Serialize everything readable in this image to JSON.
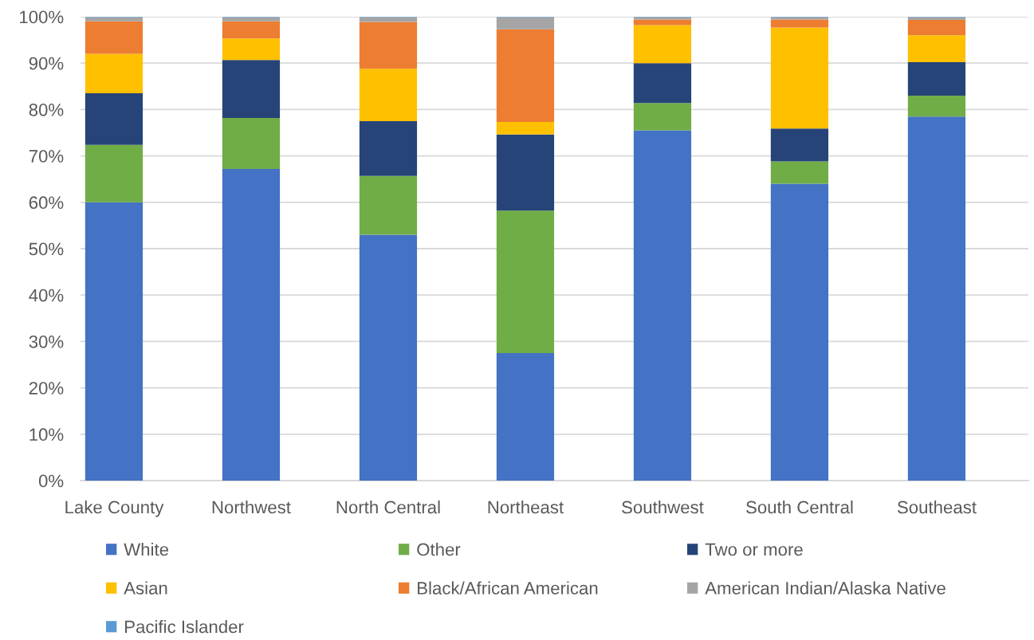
{
  "chart_data": {
    "type": "bar",
    "stacked": true,
    "categories": [
      "Lake County",
      "Northwest",
      "North Central",
      "Northeast",
      "Southwest",
      "South Central",
      "Southeast"
    ],
    "series": [
      {
        "name": "White",
        "color": "#4472c4",
        "values": [
          60.0,
          67.2,
          53.0,
          27.5,
          75.5,
          64.0,
          78.5
        ]
      },
      {
        "name": "Other",
        "color": "#70ad47",
        "values": [
          12.4,
          11.0,
          12.7,
          30.7,
          5.9,
          4.8,
          4.5
        ]
      },
      {
        "name": "Two or more",
        "color": "#264478",
        "values": [
          11.1,
          12.5,
          11.8,
          16.4,
          8.6,
          7.1,
          7.2
        ]
      },
      {
        "name": "Asian",
        "color": "#ffc000",
        "values": [
          8.5,
          4.6,
          11.3,
          2.7,
          8.2,
          21.8,
          5.8
        ]
      },
      {
        "name": "Black/African American",
        "color": "#ed7d31",
        "values": [
          7.0,
          3.7,
          10.1,
          20.0,
          1.2,
          1.7,
          3.3
        ]
      },
      {
        "name": "American Indian/Alaska Native",
        "color": "#a5a5a5",
        "values": [
          0.9,
          0.9,
          1.0,
          2.6,
          0.5,
          0.5,
          0.6
        ]
      },
      {
        "name": "Pacific Islander",
        "color": "#5b9bd5",
        "values": [
          0.1,
          0.1,
          0.1,
          0.1,
          0.1,
          0.1,
          0.1
        ]
      }
    ],
    "ylim": [
      0,
      100
    ],
    "yticks": [
      {
        "value": 0,
        "label": "0%"
      },
      {
        "value": 10,
        "label": "10%"
      },
      {
        "value": 20,
        "label": "20%"
      },
      {
        "value": 30,
        "label": "30%"
      },
      {
        "value": 40,
        "label": "40%"
      },
      {
        "value": 50,
        "label": "50%"
      },
      {
        "value": 60,
        "label": "60%"
      },
      {
        "value": 70,
        "label": "70%"
      },
      {
        "value": 80,
        "label": "80%"
      },
      {
        "value": 90,
        "label": "90%"
      },
      {
        "value": 100,
        "label": "100%"
      }
    ],
    "grid": "y",
    "legend": "bottom"
  }
}
